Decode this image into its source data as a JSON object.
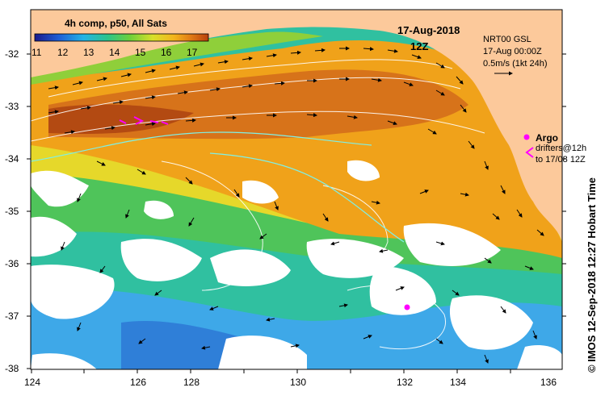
{
  "colorbar": {
    "title": "4h comp, p50, All Sats",
    "ticks": [
      "11",
      "12",
      "13",
      "14",
      "15",
      "16",
      "17"
    ],
    "colors": [
      "#1a1a8c",
      "#1f5fd6",
      "#22b3e6",
      "#2bc48a",
      "#6fd03a",
      "#d8e02a",
      "#f3b51c",
      "#e07a14",
      "#b8400c"
    ]
  },
  "date": {
    "line1": "17-Aug-2018",
    "line2": "12Z"
  },
  "info": {
    "line1": "NRT00 GSL",
    "line2": "17-Aug 00:00Z",
    "line3": "0.5m/s (1kt 24h)"
  },
  "legend": {
    "argo_label": "Argo",
    "drifters_label": "drifters@12h",
    "drifters_range": "to 17/08 12Z"
  },
  "credit": "© IMOS 12-Sep-2018 12:27 Hobart Time",
  "axes": {
    "y_ticks": [
      "-32",
      "-33",
      "-34",
      "-35",
      "-36",
      "-37",
      "-38"
    ],
    "x_ticks": [
      "124",
      "126",
      "128",
      "130",
      "132",
      "134",
      "136"
    ]
  },
  "colors": {
    "land": "#fcc99b",
    "cloud": "#ffffff",
    "marker": "#ff00ff",
    "contour": "#ffffff",
    "contour2": "#7ff0e6"
  }
}
